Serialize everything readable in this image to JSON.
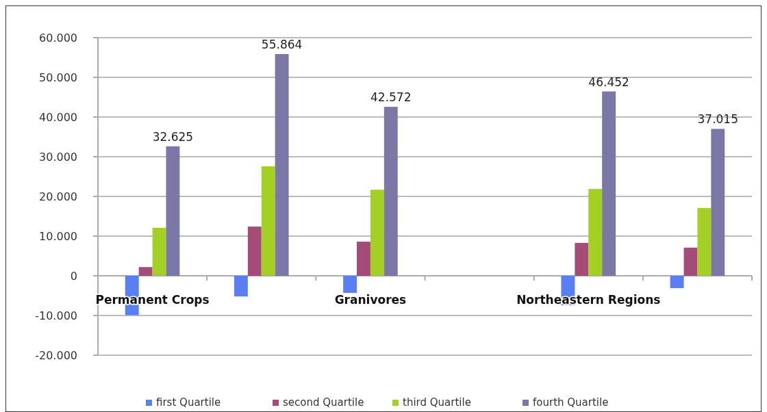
{
  "chart_data": {
    "type": "bar",
    "categories": [
      "Permanent Crops",
      null,
      "Granivores",
      null,
      "Northeastern Regions",
      null
    ],
    "series": [
      {
        "name": "first Quartile",
        "color": "#5a7ff5",
        "values": [
          -9900,
          -5200,
          -4300,
          null,
          -7400,
          -3100
        ]
      },
      {
        "name": "second Quartile",
        "color": "#a64a78",
        "values": [
          2200,
          12400,
          8600,
          null,
          8300,
          7100
        ]
      },
      {
        "name": "third Quartile",
        "color": "#a4cf25",
        "values": [
          12100,
          27600,
          21700,
          null,
          21900,
          17100
        ]
      },
      {
        "name": "fourth Quartile",
        "color": "#7b78a8",
        "values": [
          32625,
          55864,
          42572,
          null,
          46452,
          37015
        ],
        "value_labels": [
          "32.625",
          "55.864",
          "42.572",
          null,
          "46.452",
          "37.015"
        ]
      }
    ],
    "ylim": [
      -20000,
      60000
    ],
    "yticks": [
      {
        "value": -20000,
        "label": "-20.000"
      },
      {
        "value": -10000,
        "label": "-10.000"
      },
      0,
      {
        "value": 10000,
        "label": "10.000"
      },
      {
        "value": 20000,
        "label": "20.000"
      },
      {
        "value": 30000,
        "label": "30.000"
      },
      {
        "value": 40000,
        "label": "40.000"
      },
      {
        "value": 50000,
        "label": "50.000"
      },
      {
        "value": 60000,
        "label": "60.000"
      }
    ],
    "grid": "y",
    "legend": "bottom"
  }
}
